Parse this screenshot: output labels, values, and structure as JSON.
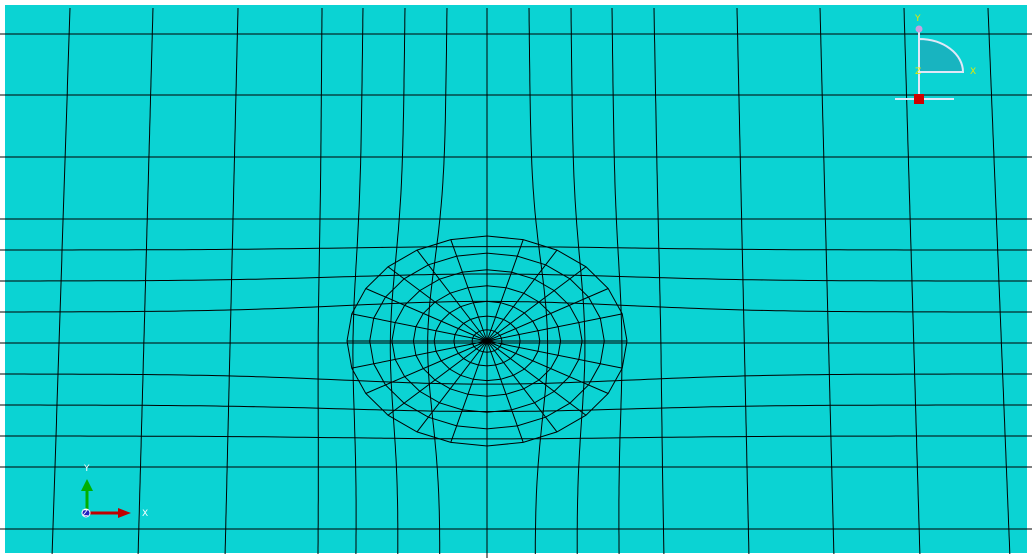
{
  "viewport": {
    "background": "#0BD3D3",
    "mesh_color": "#000000",
    "white_border": "#FFFFFF"
  },
  "mesh": {
    "hole_rings": 7,
    "hole_spokes": 24
  },
  "triad": {
    "x_label": "X",
    "y_label": "Y",
    "z_label": "Z",
    "x_color": "#C00000",
    "y_color": "#00B000",
    "z_color": "#2020C0",
    "label_color": "#FFFFFF"
  },
  "symmetry_icon": {
    "x_label": "X",
    "y_label": "Y",
    "z_label": "Z",
    "label_color": "#E8E800",
    "fill_color": "#18B4C0",
    "line_color": "#E0E8F8",
    "marker_color": "#D00000",
    "node_color": "#C8A0E0"
  }
}
